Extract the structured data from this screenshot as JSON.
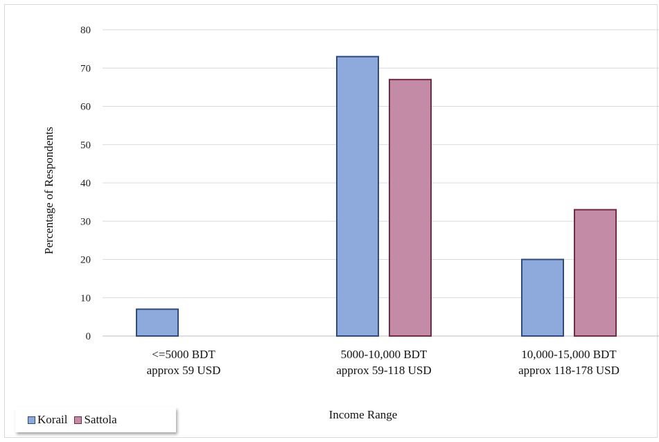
{
  "chart_data": {
    "type": "bar",
    "title": "",
    "xlabel": "Income Range",
    "ylabel": "Percentage of Respondents",
    "ylim": [
      0,
      80
    ],
    "yticks": [
      0,
      10,
      20,
      30,
      40,
      50,
      60,
      70,
      80
    ],
    "grid": true,
    "legend_position": "bottom-left",
    "categories": [
      [
        "<=5000 BDT",
        "approx 59 USD"
      ],
      [
        "5000-10,000 BDT",
        "approx 59-118 USD"
      ],
      [
        "10,000-15,000 BDT",
        "approx 118-178 USD"
      ]
    ],
    "series": [
      {
        "name": "Korail",
        "color": "#8eaadc",
        "edge": "#2f4b7c",
        "values": [
          7,
          73,
          20
        ]
      },
      {
        "name": "Sattola",
        "color": "#c48ba6",
        "edge": "#6e2c47",
        "values": [
          0,
          67,
          33
        ]
      }
    ]
  }
}
